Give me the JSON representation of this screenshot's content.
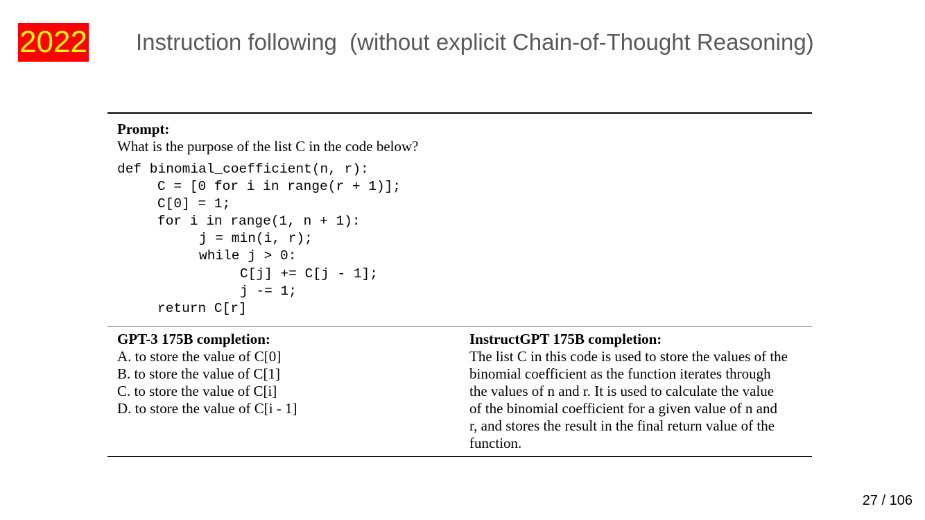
{
  "header": {
    "year": "2022",
    "title": "Instruction following  (without explicit Chain-of-Thought Reasoning)"
  },
  "figure": {
    "prompt_label": "Prompt:",
    "prompt_question": "What is the purpose of the list C in the code below?",
    "code_lines": [
      "def binomial_coefficient(n, r):",
      "C = [0 for i in range(r + 1)];",
      "C[0] = 1;",
      "for i in range(1, n + 1):",
      "j = min(i, r);",
      "while j > 0:",
      "C[j] += C[j - 1];",
      "j -= 1;",
      "return C[r]"
    ],
    "gpt3": {
      "heading": "GPT-3 175B completion:",
      "lines": [
        "A. to store the value of C[0]",
        "B. to store the value of C[1]",
        "C. to store the value of C[i]",
        "D. to store the value of C[i - 1]"
      ]
    },
    "instructgpt": {
      "heading": "InstructGPT 175B completion:",
      "lines": [
        "The list C in this code is used to store the values of the",
        "binomial coefficient as the function iterates through",
        "the values of n and r. It is used to calculate the value",
        "of the binomial coefficient for a given value of n and",
        "r, and stores the result in the final return value of the",
        "function."
      ]
    }
  },
  "footer": {
    "page": "27 / 106"
  },
  "colors": {
    "badge_bg": "#ff0000",
    "badge_text": "#ffff00",
    "title_text": "#595959"
  }
}
